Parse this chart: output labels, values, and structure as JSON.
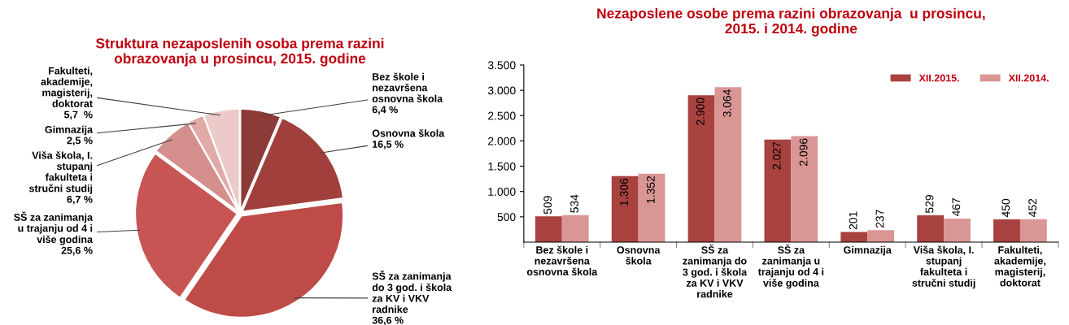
{
  "chart_data": [
    {
      "type": "pie",
      "title": "Struktura nezaposlenih osoba prema razini\nobrazovanja u prosincu, 2015. godine",
      "categories": [
        "Bez škole i\nnezavršena\nosnovna škola",
        "Osnovna škola",
        "SŠ za zanimanja\ndo 3 god. i škola\nza KV i VKV\nradnike",
        "SŠ za zanimanja\nu trajanju od 4 i\nviše godina",
        "Viša škola, I.\nstupanj\nfakulteta i\nstručni studij",
        "Gimnazija",
        "Fakulteti,\nakademije,\nmagisterij,\ndoktorat"
      ],
      "values": [
        6.4,
        16.5,
        36.6,
        25.6,
        6.7,
        2.5,
        5.7
      ],
      "value_labels": [
        "6,4 %",
        "16,5 %",
        "36,6 %",
        "25,6 %",
        "6,7 %",
        "2,5 %",
        "5,7  %"
      ],
      "colors": [
        "#8c3b38",
        "#a13f3c",
        "#be4b48",
        "#c75553",
        "#d48e8c",
        "#e0aaa8",
        "#ebcac9"
      ]
    },
    {
      "type": "bar",
      "title": "Nezaposlene osobe prema razini obrazovanja  u prosincu,\n2015. i 2014. godine",
      "categories": [
        "Bez škole i\nnezavršena\nosnovna škola",
        "Osnovna\nškola",
        "SŠ za\nzanimanja do\n3 god. i škola\nza KV i VKV\nradnike",
        "SŠ za\nzanimanja u\ntrajanju od 4 i\nviše godina",
        "Gimnazija",
        "Viša škola, I.\nstupanj\nfakulteta i\nstručni studij",
        "Fakulteti,\nakademije,\nmagisterij,\ndoktorat"
      ],
      "series": [
        {
          "name": "XII.2015.",
          "color": "#a8423f",
          "values": [
            509,
            1306,
            2900,
            2027,
            201,
            529,
            450
          ],
          "value_labels": [
            "509",
            "1.306",
            "2.900",
            "2.027",
            "201",
            "529",
            "450"
          ]
        },
        {
          "name": "XII.2014.",
          "color": "#d99694",
          "values": [
            534,
            1352,
            3064,
            2096,
            237,
            467,
            452
          ],
          "value_labels": [
            "534",
            "1.352",
            "3.064",
            "2.096",
            "237",
            "467",
            "452"
          ]
        }
      ],
      "ylim": [
        0,
        3500
      ],
      "yticks": [
        {
          "value": 500,
          "label": "500"
        },
        {
          "value": 1000,
          "label": "1.000"
        },
        {
          "value": 1500,
          "label": "1.500"
        },
        {
          "value": 2000,
          "label": "2.000"
        },
        {
          "value": 2500,
          "label": "2.500"
        },
        {
          "value": 3000,
          "label": "3.000"
        },
        {
          "value": 3500,
          "label": "3.500"
        }
      ],
      "legend": "top right",
      "grid": false
    }
  ]
}
